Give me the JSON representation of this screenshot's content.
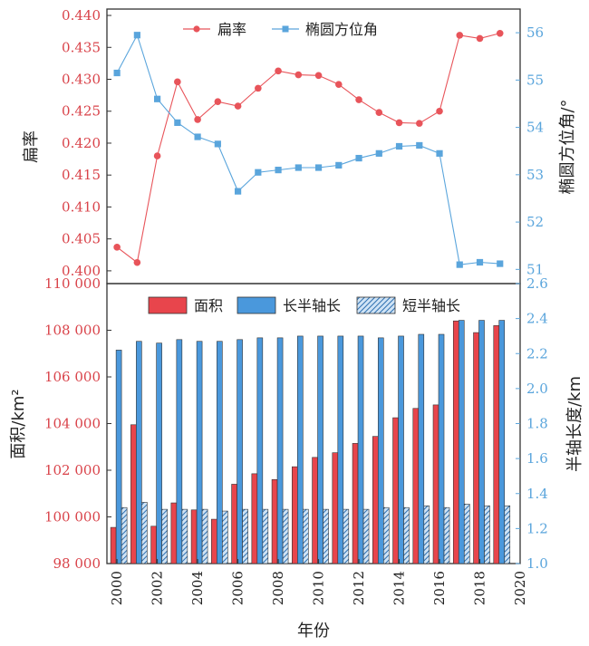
{
  "chart_data": [
    {
      "type": "line",
      "x": [
        2000,
        2001,
        2002,
        2003,
        2004,
        2005,
        2006,
        2007,
        2008,
        2009,
        2010,
        2011,
        2012,
        2013,
        2014,
        2015,
        2016,
        2017,
        2018,
        2019
      ],
      "xlim": [
        1999.5,
        2020
      ],
      "series": [
        {
          "name": "扁率",
          "axis": "left",
          "color": "#e8545a",
          "marker": "circle",
          "values": [
            0.4037,
            0.4013,
            0.418,
            0.4296,
            0.4237,
            0.4265,
            0.4258,
            0.4286,
            0.4313,
            0.4307,
            0.4306,
            0.4292,
            0.4268,
            0.4248,
            0.4232,
            0.4231,
            0.425,
            0.4369,
            0.4364,
            0.4372
          ]
        },
        {
          "name": "椭圆方位角",
          "axis": "right",
          "color": "#5aa5dc",
          "marker": "square",
          "values": [
            55.15,
            55.95,
            54.6,
            54.1,
            53.8,
            53.65,
            52.65,
            53.05,
            53.1,
            53.15,
            53.15,
            53.2,
            53.35,
            53.45,
            53.6,
            53.62,
            53.45,
            51.1,
            51.15,
            51.12
          ]
        }
      ],
      "ylabel_left": "扁率",
      "ylabel_right": "椭圆方位角/°",
      "ylim_left": [
        0.398,
        0.441
      ],
      "ylim_right": [
        50.7,
        56.5
      ],
      "yticks_left": [
        "0.400",
        "0.405",
        "0.410",
        "0.415",
        "0.420",
        "0.425",
        "0.430",
        "0.435",
        "0.440"
      ],
      "yticks_right": [
        "51",
        "52",
        "53",
        "54",
        "55",
        "56"
      ],
      "legend": "top-center"
    },
    {
      "type": "bar",
      "categories": [
        2000,
        2001,
        2002,
        2003,
        2004,
        2005,
        2006,
        2007,
        2008,
        2009,
        2010,
        2011,
        2012,
        2013,
        2014,
        2015,
        2016,
        2017,
        2018,
        2019
      ],
      "series": [
        {
          "name": "面积",
          "axis": "left",
          "color": "#e8454c",
          "values": [
            99550,
            103950,
            99600,
            100600,
            100300,
            99900,
            101400,
            101850,
            101600,
            102150,
            102550,
            102750,
            103150,
            103450,
            104250,
            104650,
            104800,
            108400,
            107900,
            108200
          ]
        },
        {
          "name": "长半轴长",
          "axis": "right",
          "color": "#4a98dc",
          "values": [
            2.22,
            2.27,
            2.26,
            2.28,
            2.27,
            2.27,
            2.28,
            2.29,
            2.29,
            2.3,
            2.3,
            2.3,
            2.3,
            2.29,
            2.3,
            2.31,
            2.31,
            2.39,
            2.39,
            2.39
          ]
        },
        {
          "name": "短半轴长",
          "axis": "right",
          "color": "#3a86cc",
          "pattern": "hatched",
          "values": [
            1.32,
            1.35,
            1.31,
            1.31,
            1.31,
            1.3,
            1.31,
            1.31,
            1.31,
            1.31,
            1.31,
            1.31,
            1.31,
            1.32,
            1.32,
            1.33,
            1.32,
            1.34,
            1.33,
            1.33
          ]
        }
      ],
      "xlabel": "年份",
      "xticks": [
        "2000",
        "2002",
        "2004",
        "2006",
        "2008",
        "2010",
        "2012",
        "2014",
        "2016",
        "2018",
        "2020"
      ],
      "xlim": [
        1999.5,
        2020
      ],
      "ylabel_left": "面积/km²",
      "ylabel_right": "半轴长度/km",
      "ylim_left": [
        98000,
        110000
      ],
      "ylim_right": [
        1.0,
        2.6
      ],
      "yticks_left": [
        "98 000",
        "100 000",
        "102 000",
        "104 000",
        "106 000",
        "108 000",
        "110 000"
      ],
      "yticks_right": [
        "1.0",
        "1.2",
        "1.4",
        "1.6",
        "1.8",
        "2.0",
        "2.2",
        "2.4",
        "2.6"
      ],
      "legend": "top"
    }
  ]
}
